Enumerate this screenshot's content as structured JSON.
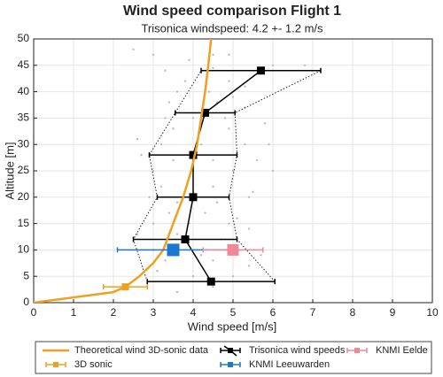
{
  "chart_data": {
    "type": "line",
    "title": "Wind speed comparison Flight 1",
    "subtitle": "Trisonica windspeed: 4.2 +- 1.2 m/s",
    "x_label": "Wind speed [m/s]",
    "y_label": "Altitude [m]",
    "xlim": [
      0,
      10
    ],
    "ylim": [
      0,
      50
    ],
    "xticks": [
      0,
      1,
      2,
      3,
      4,
      5,
      6,
      7,
      8,
      9,
      10
    ],
    "yticks": [
      0,
      5,
      10,
      15,
      20,
      25,
      30,
      35,
      40,
      45,
      50
    ],
    "grid": true,
    "legend": "bottom",
    "series": [
      {
        "name": "Theoretical wind 3D-sonic data",
        "color": "#f0a020",
        "kind": "line",
        "x": [
          0,
          2,
          2.3,
          2.65,
          3.0,
          3.25,
          3.5,
          3.75,
          3.95,
          4.1,
          4.2,
          4.3,
          4.38,
          4.45
        ],
        "y": [
          0,
          2,
          3,
          5,
          7.5,
          10,
          15,
          20,
          25,
          30,
          35,
          40,
          45,
          50
        ]
      },
      {
        "name": "Trisonica wind speeds",
        "color": "#000000",
        "kind": "errorbar-line",
        "x": [
          4.45,
          3.8,
          4.0,
          4.0,
          4.3,
          5.7
        ],
        "y": [
          4,
          12,
          20,
          28,
          36,
          44
        ],
        "xerr": [
          1.6,
          1.3,
          0.9,
          1.1,
          0.75,
          1.5
        ]
      },
      {
        "name": "KNMI Eelde",
        "color": "#f08898",
        "kind": "errorbar",
        "x": [
          5.0
        ],
        "y": [
          10
        ],
        "xerr": [
          0.75
        ]
      },
      {
        "name": "3D sonic",
        "color": "#f0a020",
        "kind": "errorbar",
        "x": [
          2.3
        ],
        "y": [
          3
        ],
        "xerr": [
          0.55
        ]
      },
      {
        "name": "KNMI Leeuwarden",
        "color": "#1a78d0",
        "kind": "errorbar",
        "x": [
          3.5
        ],
        "y": [
          10
        ],
        "xerr": [
          1.4
        ]
      },
      {
        "color": "#bbbbbb",
        "kind": "scatter",
        "x": [
          2.5,
          3.0,
          3.9,
          4.5,
          4.9,
          6.0,
          6.8,
          3.3,
          4.5,
          3.8,
          4.9,
          5.3,
          3.6,
          4.4,
          5.0,
          3.4,
          4.6,
          5.3,
          3.3,
          4.0,
          4.8,
          5.8,
          3.5,
          4.9,
          2.6,
          3.2,
          4.2,
          5.3,
          5.9,
          2.7,
          3.5,
          4.5,
          5.6,
          3.0,
          4.0,
          5.0,
          6.0,
          3.2,
          4.5,
          5.5,
          2.9,
          3.6,
          4.6,
          5.4,
          3.4,
          4.3,
          5.1,
          3.0,
          3.9,
          4.9,
          5.4,
          2.6,
          3.6,
          4.7,
          3.0,
          4.2,
          4.9,
          5.7,
          3.3,
          4.5,
          5.4,
          3.1,
          4.0,
          5.0,
          4.5,
          3.6
        ],
        "y": [
          48,
          47,
          46,
          47,
          47,
          45,
          45,
          44,
          44.5,
          42,
          42,
          41,
          40,
          40,
          39,
          38,
          38,
          37,
          35,
          35,
          35,
          34,
          33,
          33,
          31,
          30,
          30,
          30,
          30,
          28,
          27,
          27,
          27,
          25,
          25,
          25,
          25,
          22,
          22,
          21,
          20,
          19,
          19,
          20,
          17,
          17,
          16,
          15,
          15,
          15,
          14,
          13,
          13,
          12,
          10,
          9,
          10,
          9,
          8,
          8,
          7,
          6,
          5,
          5,
          3,
          2
        ]
      }
    ]
  }
}
